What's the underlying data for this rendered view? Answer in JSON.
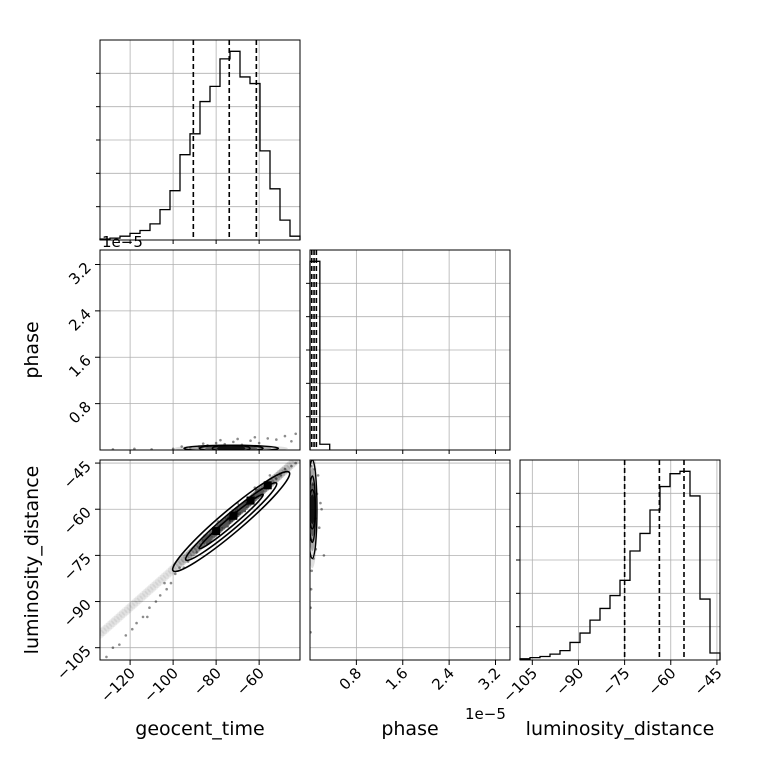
{
  "chart_data": {
    "type": "corner",
    "parameters": [
      "geocent_time",
      "phase",
      "luminosity_distance"
    ],
    "offset_labels": {
      "phase_x": "1e−5",
      "phase_y": "1e−5"
    },
    "grid": true,
    "quantile_lines_style": "dashed",
    "ranges": {
      "geocent_time": [
        -134,
        -41
      ],
      "phase": [
        0,
        3.45e-05
      ],
      "luminosity_distance": [
        -109,
        -44
      ]
    },
    "ticks": {
      "geocent_time": {
        "values": [
          -120,
          -100,
          -80,
          -60
        ],
        "labels": [
          "−120",
          "−100",
          "−80",
          "−60"
        ]
      },
      "phase": {
        "values": [
          8e-06,
          1.6e-05,
          2.4e-05,
          3.2e-05
        ],
        "labels": [
          "0.8",
          "1.6",
          "2.4",
          "3.2"
        ]
      },
      "luminosity_distance": {
        "values": [
          -105,
          -90,
          -75,
          -60,
          -45
        ],
        "labels": [
          "−105",
          "−90",
          "−75",
          "−60",
          "−45"
        ]
      }
    },
    "histograms": {
      "geocent_time": {
        "edges": [
          -134,
          -129.35,
          -124.7,
          -120.05,
          -115.4,
          -110.75,
          -106.1,
          -101.45,
          -96.8,
          -92.15,
          -87.5,
          -82.85,
          -78.2,
          -73.55,
          -68.9,
          -64.25,
          -59.6,
          -54.95,
          -50.3,
          -45.65,
          -41
        ],
        "counts": [
          1,
          2,
          4,
          7,
          10,
          17,
          32,
          52,
          90,
          112,
          146,
          162,
          191,
          199,
          172,
          165,
          94,
          54,
          21,
          4
        ],
        "quantiles": [
          -90.6,
          -73.9,
          -61.3
        ]
      },
      "phase": {
        "edges": [
          0,
          1.7e-06,
          3.4e-06
        ],
        "counts": [
          198,
          6
        ],
        "quantiles": [
          3e-07,
          7e-07,
          1.1e-06
        ]
      },
      "luminosity_distance": {
        "edges": [
          -109,
          -105.75,
          -102.5,
          -99.25,
          -96,
          -92.75,
          -89.5,
          -86.25,
          -83,
          -79.75,
          -76.5,
          -73.25,
          -70,
          -66.75,
          -63.5,
          -60.25,
          -57,
          -53.75,
          -50.5,
          -47.25,
          -44
        ],
        "counts": [
          1,
          2,
          3,
          5,
          8,
          15,
          23,
          34,
          44,
          55,
          68,
          93,
          108,
          128,
          148,
          159,
          161,
          140,
          52,
          6
        ],
        "quantiles": [
          -75.0,
          -63.7,
          -55.7
        ]
      }
    },
    "joint_geocent_time_phase": {
      "center": [
        -73,
        3e-07
      ],
      "spread": [
        11,
        2.5e-07
      ],
      "scatter_points": [
        [
          -128,
          1e-07
        ],
        [
          -118,
          2e-07
        ],
        [
          -110,
          1e-07
        ],
        [
          -100,
          2e-07
        ],
        [
          -92,
          4e-07
        ],
        [
          -88,
          6e-07
        ],
        [
          -84,
          8e-07
        ],
        [
          -80,
          1.2e-06
        ],
        [
          -76,
          1e-06
        ],
        [
          -72,
          1.4e-06
        ],
        [
          -68,
          9e-07
        ],
        [
          -64,
          1.6e-06
        ],
        [
          -60,
          1.2e-06
        ],
        [
          -56,
          2e-06
        ],
        [
          -52,
          1.8e-06
        ],
        [
          -48,
          2.4e-06
        ],
        [
          -45,
          1.5e-06
        ],
        [
          -43,
          2.8e-06
        ],
        [
          -62,
          2.2e-06
        ],
        [
          -70,
          1.9e-06
        ],
        [
          -78,
          1.7e-06
        ],
        [
          -86,
          1.1e-06
        ],
        [
          -96,
          6e-07
        ]
      ]
    },
    "joint_geocent_time_luminosity_distance": {
      "line": {
        "slope": 0.62,
        "intercept": -17.5
      },
      "contour_endpoints": [
        [
          -100,
          -80
        ],
        [
          -46,
          -48
        ]
      ],
      "scatter_points": [
        [
          -131,
          -108
        ],
        [
          -128,
          -105
        ],
        [
          -125,
          -104
        ],
        [
          -122,
          -101
        ],
        [
          -119,
          -99
        ],
        [
          -117,
          -97
        ],
        [
          -114,
          -95
        ],
        [
          -111,
          -92
        ],
        [
          -108,
          -90
        ],
        [
          -106,
          -88
        ],
        [
          -103,
          -86
        ],
        [
          -101,
          -84
        ],
        [
          -97,
          -79
        ],
        [
          -93,
          -77
        ],
        [
          -89,
          -74
        ],
        [
          -84,
          -71
        ],
        [
          -80,
          -68
        ],
        [
          -76,
          -65
        ],
        [
          -72,
          -62
        ],
        [
          -68,
          -60
        ],
        [
          -64,
          -57
        ],
        [
          -60,
          -55
        ],
        [
          -56,
          -52
        ],
        [
          -52,
          -50
        ],
        [
          -48,
          -47
        ],
        [
          -45,
          -46
        ],
        [
          -43,
          -45
        ],
        [
          -112,
          -95
        ],
        [
          -104,
          -84
        ],
        [
          -99,
          -81
        ],
        [
          -95,
          -79
        ],
        [
          -86,
          -70
        ],
        [
          -79,
          -64
        ],
        [
          -70,
          -58
        ],
        [
          -62,
          -53
        ],
        [
          -55,
          -49
        ],
        [
          -50,
          -49
        ]
      ]
    },
    "joint_phase_luminosity_distance": {
      "center": [
        4e-07,
        -60
      ],
      "spread": [
        4e-07,
        8
      ],
      "scatter_points": [
        [
          2e-07,
          -46
        ],
        [
          8e-07,
          -47
        ],
        [
          1.4e-06,
          -49
        ],
        [
          5e-07,
          -52
        ],
        [
          1.2e-06,
          -55
        ],
        [
          1.8e-06,
          -58
        ],
        [
          9e-07,
          -63
        ],
        [
          1.6e-06,
          -66
        ],
        [
          3e-07,
          -70
        ],
        [
          1e-06,
          -73
        ],
        [
          6e-07,
          -76
        ],
        [
          3e-07,
          -80
        ],
        [
          2e-07,
          -86
        ],
        [
          1e-07,
          -92
        ],
        [
          1e-07,
          -100
        ],
        [
          2.4e-06,
          -75
        ],
        [
          2e-06,
          -60
        ],
        [
          7e-07,
          -65
        ]
      ]
    }
  }
}
